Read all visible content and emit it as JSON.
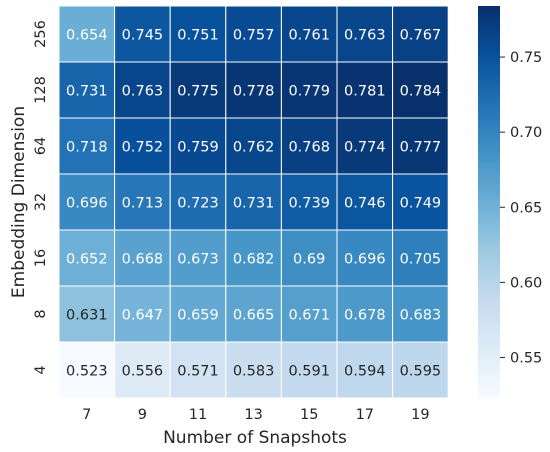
{
  "chart_data": {
    "type": "heatmap",
    "title": "",
    "xlabel": "Number of Snapshots",
    "ylabel": "Embedding Dimension",
    "x_categories": [
      "7",
      "9",
      "11",
      "13",
      "15",
      "17",
      "19"
    ],
    "y_categories": [
      "256",
      "128",
      "64",
      "32",
      "16",
      "8",
      "4"
    ],
    "values": [
      [
        0.654,
        0.745,
        0.751,
        0.757,
        0.761,
        0.763,
        0.767
      ],
      [
        0.731,
        0.763,
        0.775,
        0.778,
        0.779,
        0.781,
        0.784
      ],
      [
        0.718,
        0.752,
        0.759,
        0.762,
        0.768,
        0.774,
        0.777
      ],
      [
        0.696,
        0.713,
        0.723,
        0.731,
        0.739,
        0.746,
        0.749
      ],
      [
        0.652,
        0.668,
        0.673,
        0.682,
        0.69,
        0.696,
        0.705
      ],
      [
        0.631,
        0.647,
        0.659,
        0.665,
        0.671,
        0.678,
        0.683
      ],
      [
        0.523,
        0.556,
        0.571,
        0.583,
        0.591,
        0.594,
        0.595
      ]
    ],
    "value_labels": [
      [
        "0.654",
        "0.745",
        "0.751",
        "0.757",
        "0.761",
        "0.763",
        "0.767"
      ],
      [
        "0.731",
        "0.763",
        "0.775",
        "0.778",
        "0.779",
        "0.781",
        "0.784"
      ],
      [
        "0.718",
        "0.752",
        "0.759",
        "0.762",
        "0.768",
        "0.774",
        "0.777"
      ],
      [
        "0.696",
        "0.713",
        "0.723",
        "0.731",
        "0.739",
        "0.746",
        "0.749"
      ],
      [
        "0.652",
        "0.668",
        "0.673",
        "0.682",
        "0.69",
        "0.696",
        "0.705"
      ],
      [
        "0.631",
        "0.647",
        "0.659",
        "0.665",
        "0.671",
        "0.678",
        "0.683"
      ],
      [
        "0.523",
        "0.556",
        "0.571",
        "0.583",
        "0.591",
        "0.594",
        "0.595"
      ]
    ],
    "colormap": "Blues",
    "color_range": [
      0.523,
      0.784
    ],
    "colorbar": {
      "ticks": [
        0.55,
        0.6,
        0.65,
        0.7,
        0.75
      ],
      "tick_labels": [
        "0.55",
        "0.60",
        "0.65",
        "0.70",
        "0.75"
      ],
      "placement": "right"
    },
    "grid": false
  }
}
